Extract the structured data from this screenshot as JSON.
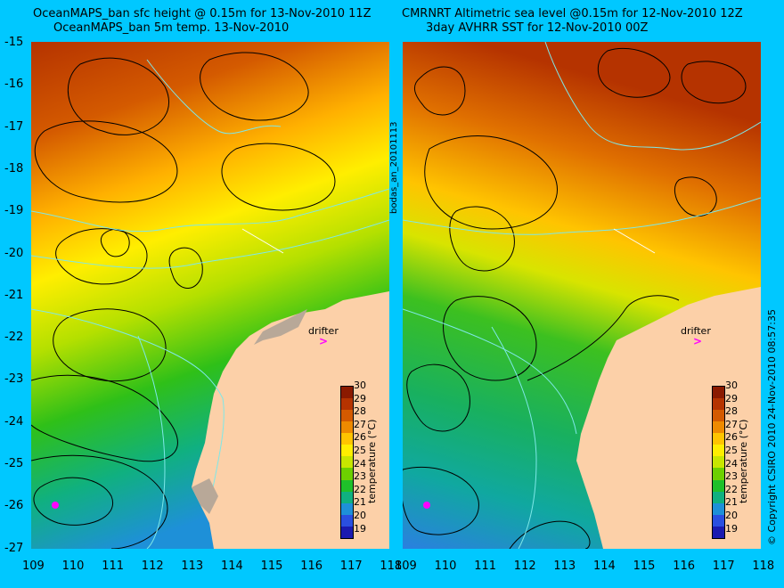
{
  "titles": {
    "left_line1": "OceanMAPS_ban sfc height @ 0.15m for 13-Nov-2010 11Z",
    "left_line2": "OceanMAPS_ban 5m temp. 13-Nov-2010",
    "right_line1": "CMRNRT Altimetric sea level  @0.15m  for 12-Nov-2010 12Z",
    "right_line2": "3day AVHRR SST for 12-Nov-2010 00Z"
  },
  "side_labels": {
    "middle": "bodas_an_20101113",
    "copyright": "© Copyright CSIRO 2010   24-Nov-2010 08:57:35"
  },
  "axes": {
    "lat_ticks": [
      "-15",
      "-16",
      "-17",
      "-18",
      "-19",
      "-20",
      "-21",
      "-22",
      "-23",
      "-24",
      "-25",
      "-26",
      "-27"
    ],
    "lon_ticks": [
      "109",
      "110",
      "111",
      "112",
      "113",
      "114",
      "115",
      "116",
      "117",
      "118"
    ]
  },
  "colorbar": {
    "title": "temperature (°C)",
    "labels": [
      "30",
      "29",
      "28",
      "27",
      "26",
      "25",
      "24",
      "23",
      "22",
      "21",
      "20",
      "19"
    ],
    "colors": [
      "#8b1a00",
      "#b53300",
      "#d45a00",
      "#ee8a00",
      "#ffc400",
      "#ffee00",
      "#c8e600",
      "#6dd000",
      "#1fc02a",
      "#10b080",
      "#1e90d8",
      "#2a4fe0",
      "#1a1ab0"
    ]
  },
  "annotations": {
    "drifter_label": "drifter",
    "drifter_symbol": ">"
  }
}
